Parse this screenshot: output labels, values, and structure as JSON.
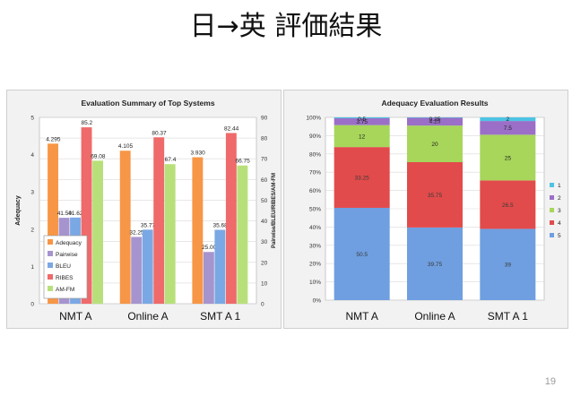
{
  "slide": {
    "title_src": "日",
    "title_arrow": "→",
    "title_tgt": "英",
    "title_rest": "評価結果",
    "page_number": "19"
  },
  "chart_data": [
    {
      "type": "bar",
      "title": "Evaluation Summary of Top Systems",
      "ylabel": "Adequacy",
      "y2label": "Pairwise/BLEU/RIBES/AM-FM",
      "categories": [
        "NMT A",
        "Online A",
        "SMT A 1"
      ],
      "ylim": [
        0,
        5
      ],
      "y2lim": [
        0,
        90
      ],
      "yticks": [
        "0",
        "1",
        "2",
        "3",
        "4",
        "5"
      ],
      "y2ticks": [
        "0",
        "10",
        "20",
        "30",
        "40",
        "50",
        "60",
        "70",
        "80",
        "90"
      ],
      "legend_position": "bottom-left",
      "grid": true,
      "series": [
        {
          "name": "Adequacy",
          "axis": "left",
          "color": "#f79646",
          "values": [
            4.295,
            4.105,
            3.93
          ],
          "labels": [
            "4.295",
            "4.105",
            "3.930"
          ]
        },
        {
          "name": "Pairwise",
          "axis": "right",
          "color": "#a694cf",
          "values": [
            41.5,
            32.25,
            25.0
          ],
          "labels": [
            "41.50",
            "32.25",
            "25.00"
          ]
        },
        {
          "name": "BLEU",
          "axis": "right",
          "color": "#7aa8e4",
          "values": [
            41.62,
            35.77,
            35.68
          ],
          "labels": [
            "41.62",
            "35.77",
            "35.68"
          ]
        },
        {
          "name": "RIBES",
          "axis": "right",
          "color": "#ef6a6a",
          "values": [
            85.2,
            80.37,
            82.44
          ],
          "labels": [
            "85.2",
            "80.37",
            "82.44"
          ]
        },
        {
          "name": "AM-FM",
          "axis": "right",
          "color": "#b8e07a",
          "values": [
            69.08,
            67.4,
            66.75
          ],
          "labels": [
            "69.08",
            "67.4",
            "66.75"
          ]
        }
      ]
    },
    {
      "type": "bar",
      "stacked": true,
      "title": "Adequacy Evaluation Results",
      "categories": [
        "NMT A",
        "Online A",
        "SMT A 1"
      ],
      "ylim": [
        0,
        100
      ],
      "yticks": [
        "0%",
        "10%",
        "20%",
        "30%",
        "40%",
        "50%",
        "60%",
        "70%",
        "80%",
        "90%",
        "100%"
      ],
      "legend_position": "right",
      "grid": true,
      "series": [
        {
          "name": "5",
          "color": "#6f9fe0",
          "values": [
            50.5,
            39.75,
            39
          ],
          "labels": [
            "50.5",
            "39.75",
            "39"
          ]
        },
        {
          "name": "4",
          "color": "#e24b4b",
          "values": [
            33.25,
            35.75,
            26.5
          ],
          "labels": [
            "33.25",
            "35.75",
            "26.5"
          ]
        },
        {
          "name": "3",
          "color": "#a7d65a",
          "values": [
            12,
            20,
            25
          ],
          "labels": [
            "12",
            "20",
            "25"
          ]
        },
        {
          "name": "2",
          "color": "#9b6fc8",
          "values": [
            3.75,
            4.25,
            7.5
          ],
          "labels": [
            "3.75",
            "4.25",
            "7.5"
          ]
        },
        {
          "name": "1",
          "color": "#4cc3e4",
          "values": [
            0.5,
            0.25,
            2
          ],
          "labels": [
            "0.5",
            "0.25",
            "2"
          ]
        }
      ]
    }
  ]
}
